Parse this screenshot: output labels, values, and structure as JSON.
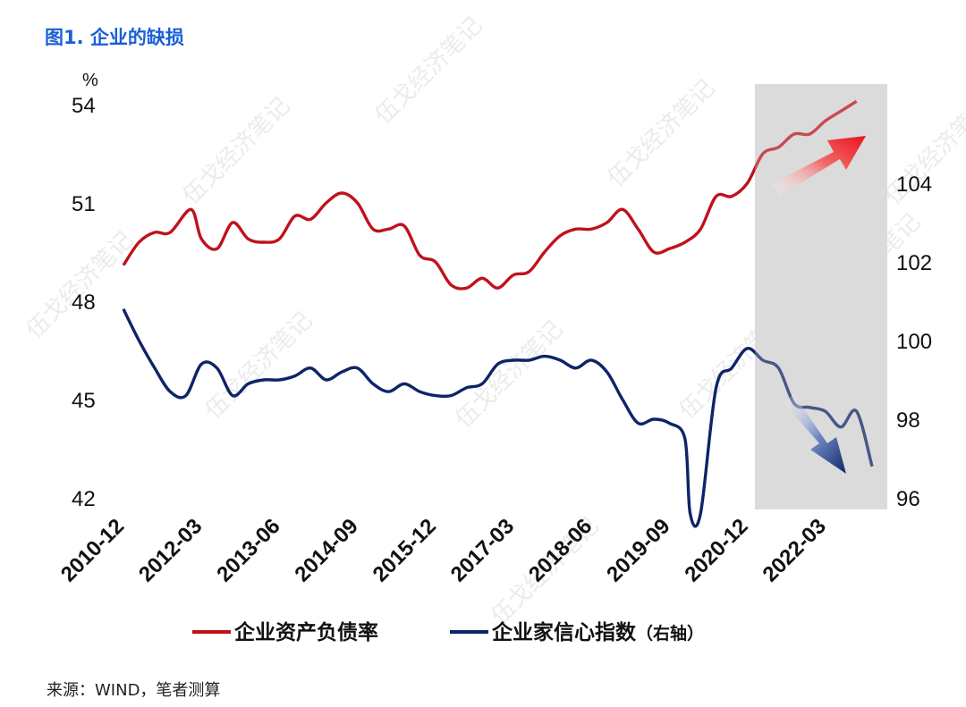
{
  "title": "图1. 企业的缺损",
  "source": "来源：WIND，笔者测算",
  "watermark": "伍戈经济笔记",
  "chart_data": {
    "type": "line",
    "left_axis": {
      "unit": "%",
      "ticks": [
        54,
        51,
        48,
        45,
        42
      ],
      "ylim": [
        42,
        54
      ]
    },
    "right_axis": {
      "ticks": [
        104,
        102,
        100,
        98,
        96
      ],
      "ylim": [
        96,
        106
      ]
    },
    "x_tick_labels": [
      "2010-12",
      "2012-03",
      "2013-06",
      "2014-09",
      "2015-12",
      "2017-03",
      "2018-06",
      "2019-09",
      "2020-12",
      "2022-03"
    ],
    "x_range": [
      "2010-12",
      "2022-12"
    ],
    "shaded_region": {
      "from": "2020-12",
      "to": "2022-12",
      "color": "#dcdcdc"
    },
    "series": [
      {
        "name": "企业资产负债率",
        "axis": "left",
        "color": "#c0121c",
        "points": [
          [
            "2010-12",
            49.1
          ],
          [
            "2011-03",
            49.8
          ],
          [
            "2011-06",
            50.1
          ],
          [
            "2011-09",
            50.1
          ],
          [
            "2012-01",
            50.8
          ],
          [
            "2012-03",
            49.9
          ],
          [
            "2012-06",
            49.6
          ],
          [
            "2012-09",
            50.4
          ],
          [
            "2012-12",
            49.9
          ],
          [
            "2013-03",
            49.8
          ],
          [
            "2013-06",
            49.9
          ],
          [
            "2013-09",
            50.6
          ],
          [
            "2013-12",
            50.5
          ],
          [
            "2014-03",
            51.0
          ],
          [
            "2014-06",
            51.3
          ],
          [
            "2014-09",
            51.0
          ],
          [
            "2014-12",
            50.2
          ],
          [
            "2015-03",
            50.2
          ],
          [
            "2015-06",
            50.3
          ],
          [
            "2015-09",
            49.4
          ],
          [
            "2015-12",
            49.2
          ],
          [
            "2016-03",
            48.5
          ],
          [
            "2016-06",
            48.4
          ],
          [
            "2016-09",
            48.7
          ],
          [
            "2016-12",
            48.4
          ],
          [
            "2017-03",
            48.8
          ],
          [
            "2017-06",
            48.9
          ],
          [
            "2017-09",
            49.5
          ],
          [
            "2017-12",
            50.0
          ],
          [
            "2018-03",
            50.2
          ],
          [
            "2018-06",
            50.2
          ],
          [
            "2018-09",
            50.4
          ],
          [
            "2018-12",
            50.8
          ],
          [
            "2019-03",
            50.2
          ],
          [
            "2019-06",
            49.5
          ],
          [
            "2019-09",
            49.6
          ],
          [
            "2019-12",
            49.8
          ],
          [
            "2020-03",
            50.2
          ],
          [
            "2020-06",
            51.2
          ],
          [
            "2020-09",
            51.2
          ],
          [
            "2020-12",
            51.6
          ],
          [
            "2021-03",
            52.5
          ],
          [
            "2021-06",
            52.7
          ],
          [
            "2021-09",
            53.1
          ],
          [
            "2021-12",
            53.1
          ],
          [
            "2022-03",
            53.5
          ],
          [
            "2022-06",
            53.8
          ],
          [
            "2022-09",
            54.1
          ]
        ]
      },
      {
        "name": "企业家信心指数（右轴）",
        "axis": "right",
        "color": "#0f2466",
        "points": [
          [
            "2010-12",
            100.8
          ],
          [
            "2011-03",
            100.0
          ],
          [
            "2011-06",
            99.3
          ],
          [
            "2011-09",
            98.7
          ],
          [
            "2011-12",
            98.6
          ],
          [
            "2012-03",
            99.4
          ],
          [
            "2012-06",
            99.3
          ],
          [
            "2012-09",
            98.6
          ],
          [
            "2012-12",
            98.9
          ],
          [
            "2013-03",
            99.0
          ],
          [
            "2013-06",
            99.0
          ],
          [
            "2013-09",
            99.1
          ],
          [
            "2013-12",
            99.3
          ],
          [
            "2014-03",
            99.0
          ],
          [
            "2014-06",
            99.2
          ],
          [
            "2014-09",
            99.3
          ],
          [
            "2014-12",
            98.9
          ],
          [
            "2015-03",
            98.7
          ],
          [
            "2015-06",
            98.9
          ],
          [
            "2015-09",
            98.7
          ],
          [
            "2015-12",
            98.6
          ],
          [
            "2016-03",
            98.6
          ],
          [
            "2016-06",
            98.8
          ],
          [
            "2016-09",
            98.9
          ],
          [
            "2016-12",
            99.4
          ],
          [
            "2017-03",
            99.5
          ],
          [
            "2017-06",
            99.5
          ],
          [
            "2017-09",
            99.6
          ],
          [
            "2017-12",
            99.5
          ],
          [
            "2018-03",
            99.3
          ],
          [
            "2018-06",
            99.5
          ],
          [
            "2018-09",
            99.2
          ],
          [
            "2018-12",
            98.5
          ],
          [
            "2019-03",
            97.9
          ],
          [
            "2019-06",
            98.0
          ],
          [
            "2019-09",
            97.9
          ],
          [
            "2019-12",
            97.5
          ],
          [
            "2020-01",
            95.6
          ],
          [
            "2020-03",
            95.6
          ],
          [
            "2020-06",
            98.8
          ],
          [
            "2020-09",
            99.3
          ],
          [
            "2020-12",
            99.8
          ],
          [
            "2021-03",
            99.5
          ],
          [
            "2021-06",
            99.3
          ],
          [
            "2021-09",
            98.4
          ],
          [
            "2021-12",
            98.3
          ],
          [
            "2022-03",
            98.2
          ],
          [
            "2022-06",
            97.8
          ],
          [
            "2022-09",
            98.2
          ],
          [
            "2022-12",
            96.8
          ]
        ]
      }
    ],
    "annotations": [
      {
        "type": "arrow",
        "direction": "up-right",
        "color": "#e8232a"
      },
      {
        "type": "arrow",
        "direction": "down-right",
        "color": "#1a3276"
      }
    ]
  }
}
